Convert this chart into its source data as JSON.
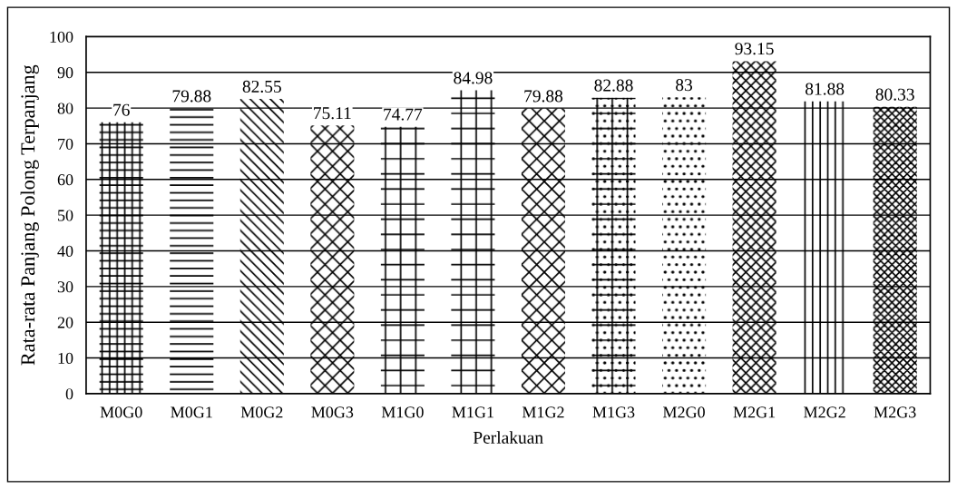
{
  "chart_data": {
    "type": "bar",
    "xlabel": "Perlakuan",
    "ylabel": "Rata-rata Panjang Polong Terpanjang",
    "categories": [
      "M0G0",
      "M0G1",
      "M0G2",
      "M0G3",
      "M1G0",
      "M1G1",
      "M1G2",
      "M1G3",
      "M2G0",
      "M2G1",
      "M2G2",
      "M2G3"
    ],
    "values": [
      76,
      79.88,
      82.55,
      75.11,
      74.77,
      84.98,
      79.88,
      82.88,
      83,
      93.15,
      81.88,
      80.33
    ],
    "color": "#000000",
    "ylim": [
      0,
      100
    ],
    "yticks": [
      0,
      10,
      20,
      30,
      40,
      50,
      60,
      70,
      80,
      90,
      100
    ],
    "grid": "y",
    "data_labels": true
  }
}
